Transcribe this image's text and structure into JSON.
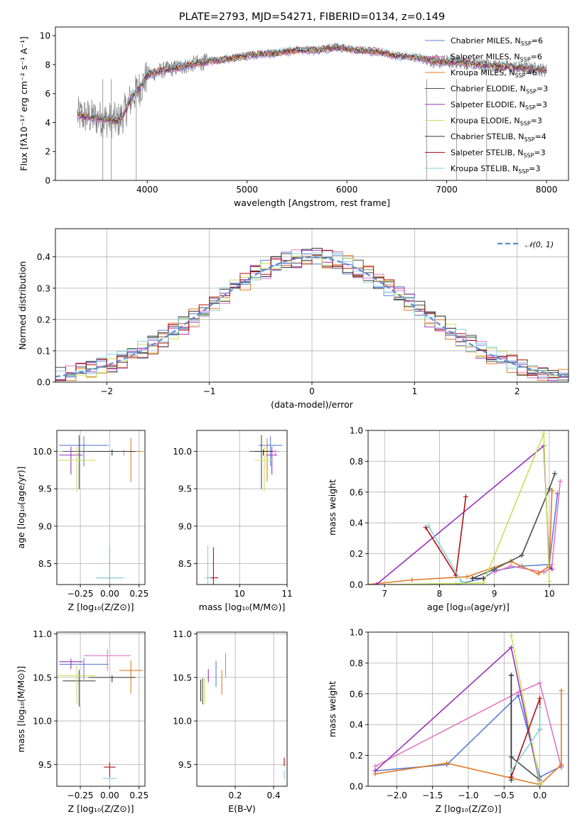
{
  "colors": {
    "Chabrier MILES": "#5b7fd6",
    "Salpeter MILES": "#e377c2",
    "Kroupa MILES": "#e07b24",
    "Chabrier ELODIE": "#4d4d4d",
    "Salpeter ELODIE": "#9b30b8",
    "Kroupa ELODIE": "#c8e05a",
    "Chabrier STELIB": "#333333",
    "Salpeter STELIB": "#b01010",
    "Kroupa STELIB": "#7fd3e0",
    "normal": "#5b8bd6"
  },
  "chart_data": [
    {
      "id": "spectrum",
      "type": "line",
      "title": "PLATE=2793, MJD=54271, FIBERID=0134, z=0.149",
      "xlabel": "wavelength [Angstrom, rest frame]",
      "ylabel": "Flux [fλ10⁻¹⁷ erg cm⁻² s⁻¹ A⁻¹]",
      "xlim": [
        3080,
        8220
      ],
      "ylim": [
        0,
        10.6
      ],
      "xticks": [
        4000,
        5000,
        6000,
        7000,
        8000
      ],
      "yticks": [
        0,
        2,
        4,
        6,
        8,
        10
      ],
      "grid": false,
      "legend_position": "right",
      "legend": [
        {
          "name": "Chabrier MILES",
          "nssp": "6"
        },
        {
          "name": "Salpeter MILES",
          "nssp": "6"
        },
        {
          "name": "Kroupa MILES",
          "nssp": "6"
        },
        {
          "name": "Chabrier ELODIE",
          "nssp": "3"
        },
        {
          "name": "Salpeter ELODIE",
          "nssp": "3"
        },
        {
          "name": "Kroupa ELODIE",
          "nssp": "3"
        },
        {
          "name": "Chabrier STELIB",
          "nssp": "4"
        },
        {
          "name": "Salpeter STELIB",
          "nssp": "3"
        },
        {
          "name": "Kroupa STELIB",
          "nssp": "3"
        }
      ],
      "model_curve": {
        "x": [
          3300,
          3500,
          3700,
          3750,
          3850,
          3950,
          4000,
          4150,
          4300,
          4500,
          4700,
          4900,
          5100,
          5300,
          5500,
          5700,
          5900,
          6100,
          6300,
          6500,
          6700,
          6900,
          7100,
          7300,
          7500,
          7700,
          7900,
          8000
        ],
        "y": [
          4.5,
          4.3,
          4.1,
          4.4,
          5.8,
          6.6,
          7.3,
          7.6,
          7.8,
          8.1,
          8.3,
          8.5,
          8.7,
          8.8,
          9.0,
          9.0,
          9.2,
          9.0,
          8.9,
          8.6,
          8.5,
          8.2,
          8.2,
          8.0,
          7.9,
          7.8,
          7.7,
          7.6
        ]
      }
    },
    {
      "id": "residuals",
      "type": "step",
      "xlabel": "(data-model)/error",
      "ylabel": "Normed distribution",
      "xlim": [
        -2.5,
        2.5
      ],
      "ylim": [
        0,
        0.49
      ],
      "xticks": [
        -2,
        -1,
        0,
        1,
        2
      ],
      "yticks": [
        0.0,
        0.1,
        0.2,
        0.3,
        0.4
      ],
      "grid": true,
      "legend_position": "top-right",
      "normal_label": "𝒩(0, 1)",
      "normal": {
        "mu": 0,
        "sigma": 1
      }
    },
    {
      "id": "age-vs-Z",
      "type": "scatter",
      "xlabel": "Z [log₁₀(Z/Z⊙)]",
      "ylabel": "age  [log₁₀(age/yr)]",
      "xlim": [
        -0.45,
        0.3
      ],
      "ylim": [
        8.22,
        10.28
      ],
      "xticks": [
        -0.25,
        0.0,
        0.25
      ],
      "xticklabels": [
        "−0.25",
        "0.00",
        "0.25"
      ],
      "yticks": [
        8.5,
        9.0,
        9.5,
        10.0
      ],
      "points": [
        {
          "s": "Chabrier MILES",
          "x": -0.22,
          "y": 10.08,
          "xe": 0.21,
          "ye": 0.4
        },
        {
          "s": "Salpeter MILES",
          "x": 0.12,
          "y": 10.0,
          "xe": 0.1,
          "ye": 0.08
        },
        {
          "s": "Kroupa MILES",
          "x": 0.18,
          "y": 10.0,
          "xe": 0.1,
          "ye": 0.58
        },
        {
          "s": "Chabrier ELODIE",
          "x": -0.26,
          "y": 10.0,
          "xe": 0.14,
          "ye": 0.72
        },
        {
          "s": "Salpeter ELODIE",
          "x": -0.33,
          "y": 9.95,
          "xe": 0.1,
          "ye": 0.37
        },
        {
          "s": "Kroupa ELODIE",
          "x": -0.28,
          "y": 9.88,
          "xe": 0.16,
          "ye": 0.6
        },
        {
          "s": "Chabrier STELIB",
          "x": 0.02,
          "y": 10.0,
          "xe": 0.2,
          "ye": 0.08
        },
        {
          "s": "Salpeter STELIB",
          "x": 0.0,
          "y": 8.31,
          "xe": 0.1,
          "ye": 1.36
        },
        {
          "s": "Kroupa STELIB",
          "x": 0.0,
          "y": 8.31,
          "xe": 0.12,
          "ye": 1.44
        }
      ]
    },
    {
      "id": "age-vs-mass",
      "type": "scatter",
      "xlabel": "mass [log₁₀(M/M⊙)]",
      "xlim": [
        9.1,
        11.0
      ],
      "ylim": [
        8.22,
        10.28
      ],
      "xticks": [
        10,
        11
      ],
      "yticks": [
        8.5,
        9.0,
        9.5,
        10.0
      ],
      "points": [
        {
          "s": "Chabrier MILES",
          "x": 10.65,
          "y": 10.08,
          "xe": 0.25,
          "ye": 0.4
        },
        {
          "s": "Salpeter MILES",
          "x": 10.75,
          "y": 10.0,
          "xe": 0.1,
          "ye": 0.08
        },
        {
          "s": "Kroupa MILES",
          "x": 10.58,
          "y": 10.0,
          "xe": 0.1,
          "ye": 0.58
        },
        {
          "s": "Chabrier ELODIE",
          "x": 10.46,
          "y": 10.0,
          "xe": 0.25,
          "ye": 0.72
        },
        {
          "s": "Salpeter ELODIE",
          "x": 10.68,
          "y": 9.95,
          "xe": 0.12,
          "ye": 0.37
        },
        {
          "s": "Kroupa ELODIE",
          "x": 10.52,
          "y": 9.88,
          "xe": 0.2,
          "ye": 0.6
        },
        {
          "s": "Chabrier STELIB",
          "x": 10.5,
          "y": 10.0,
          "xe": 0.2,
          "ye": 0.08
        },
        {
          "s": "Salpeter STELIB",
          "x": 9.45,
          "y": 8.31,
          "xe": 0.1,
          "ye": 1.36
        },
        {
          "s": "Kroupa STELIB",
          "x": 9.33,
          "y": 8.31,
          "xe": 0.06,
          "ye": 1.44
        }
      ]
    },
    {
      "id": "weight-vs-age",
      "type": "line",
      "xlabel": "age  [log₁₀(age/yr)]",
      "ylabel": "mass weight",
      "xlim": [
        6.7,
        10.35
      ],
      "ylim": [
        0,
        1.0
      ],
      "xticks": [
        7,
        8,
        9,
        10
      ],
      "yticks": [
        0.0,
        0.2,
        0.4,
        0.6,
        0.8,
        1.0
      ],
      "grid": true,
      "series": [
        {
          "s": "Chabrier MILES",
          "x": [
            8.3,
            8.8,
            9.0,
            9.5,
            10.0,
            10.15
          ],
          "y": [
            0.0,
            0.04,
            0.09,
            0.12,
            0.13,
            0.59
          ]
        },
        {
          "s": "Salpeter MILES",
          "x": [
            9.0,
            9.3,
            9.9,
            10.0,
            10.05,
            10.2
          ],
          "y": [
            0.08,
            0.12,
            0.08,
            0.1,
            0.13,
            0.67
          ]
        },
        {
          "s": "Kroupa MILES",
          "x": [
            6.7,
            7.5,
            8.5,
            9.3,
            9.8,
            10.0,
            10.05
          ],
          "y": [
            0.0,
            0.03,
            0.05,
            0.15,
            0.07,
            0.12,
            0.61
          ]
        },
        {
          "s": "Chabrier ELODIE",
          "x": [
            8.6,
            9.0,
            9.5,
            10.0,
            10.1
          ],
          "y": [
            0.04,
            0.1,
            0.19,
            0.62,
            0.72
          ]
        },
        {
          "s": "Salpeter ELODIE",
          "x": [
            6.85,
            9.9,
            10.0,
            10.05
          ],
          "y": [
            0.0,
            0.9,
            0.11,
            0.1
          ]
        },
        {
          "s": "Kroupa ELODIE",
          "x": [
            7.1,
            8.8,
            9.9,
            10.0
          ],
          "y": [
            0.0,
            0.01,
            0.98,
            0.02
          ]
        },
        {
          "s": "Chabrier STELIB",
          "x": [
            8.6,
            8.8
          ],
          "y": [
            0.04,
            0.04
          ]
        },
        {
          "s": "Salpeter STELIB",
          "x": [
            7.75,
            8.3,
            8.48
          ],
          "y": [
            0.37,
            0.06,
            0.57
          ]
        },
        {
          "s": "Kroupa STELIB",
          "x": [
            7.8,
            8.4
          ],
          "y": [
            0.38,
            0.02
          ]
        }
      ]
    },
    {
      "id": "mass-vs-Z",
      "type": "scatter",
      "xlabel": "Z [log₁₀(Z/Z⊙)]",
      "ylabel": "mass [log₁₀(M/M⊙)]",
      "xlim": [
        -0.45,
        0.3
      ],
      "ylim": [
        9.25,
        11.02
      ],
      "xticks": [
        -0.25,
        0.0,
        0.25
      ],
      "xticklabels": [
        "−0.25",
        "0.00",
        "0.25"
      ],
      "yticks": [
        9.5,
        10.0,
        10.5,
        11.0
      ],
      "points": [
        {
          "s": "Chabrier MILES",
          "x": -0.22,
          "y": 10.65,
          "xe": 0.21,
          "ye": 0.25
        },
        {
          "s": "Salpeter MILES",
          "x": -0.02,
          "y": 10.75,
          "xe": 0.2,
          "ye": 0.25
        },
        {
          "s": "Kroupa MILES",
          "x": 0.18,
          "y": 10.58,
          "xe": 0.1,
          "ye": 0.38
        },
        {
          "s": "Chabrier ELODIE",
          "x": -0.26,
          "y": 10.46,
          "xe": 0.14,
          "ye": 0.42
        },
        {
          "s": "Salpeter ELODIE",
          "x": -0.33,
          "y": 10.68,
          "xe": 0.1,
          "ye": 0.12
        },
        {
          "s": "Kroupa ELODIE",
          "x": -0.28,
          "y": 10.52,
          "xe": 0.16,
          "ye": 0.45
        },
        {
          "s": "Chabrier STELIB",
          "x": 0.02,
          "y": 10.5,
          "xe": 0.2,
          "ye": 0.08
        },
        {
          "s": "Salpeter STELIB",
          "x": 0.0,
          "y": 9.47,
          "xe": 0.05,
          "ye": 0.18
        },
        {
          "s": "Kroupa STELIB",
          "x": 0.0,
          "y": 9.34,
          "xe": 0.06,
          "ye": 0.05
        }
      ]
    },
    {
      "id": "mass-vs-ebv",
      "type": "scatter",
      "xlabel": "E(B-V)",
      "xlim": [
        0.0,
        0.47
      ],
      "ylim": [
        9.25,
        11.02
      ],
      "xticks": [
        0.2,
        0.4
      ],
      "yticks": [
        9.5,
        10.0,
        10.5,
        11.0
      ],
      "points": [
        {
          "s": "Chabrier MILES",
          "x": 0.1,
          "y": 10.6,
          "ye": 0.3
        },
        {
          "s": "Salpeter MILES",
          "x": 0.15,
          "y": 10.7,
          "ye": 0.28
        },
        {
          "s": "Kroupa MILES",
          "x": 0.13,
          "y": 10.5,
          "ye": 0.28
        },
        {
          "s": "Chabrier ELODIE",
          "x": 0.03,
          "y": 10.4,
          "ye": 0.3
        },
        {
          "s": "Salpeter ELODIE",
          "x": 0.06,
          "y": 10.55,
          "ye": 0.15
        },
        {
          "s": "Kroupa ELODIE",
          "x": 0.04,
          "y": 10.4,
          "ye": 0.3
        },
        {
          "s": "Chabrier STELIB",
          "x": 0.02,
          "y": 10.4,
          "ye": 0.25
        },
        {
          "s": "Salpeter STELIB",
          "x": 0.455,
          "y": 9.55,
          "ye": 0.1
        },
        {
          "s": "Kroupa STELIB",
          "x": 0.455,
          "y": 9.4,
          "ye": 0.1
        }
      ]
    },
    {
      "id": "weight-vs-Z",
      "type": "line",
      "xlabel": "Z [log₁₀(Z/Z⊙)]",
      "ylabel": "mass weight",
      "xlim": [
        -2.4,
        0.4
      ],
      "ylim": [
        0,
        1.0
      ],
      "xticks": [
        -2.0,
        -1.5,
        -1.0,
        -0.5,
        0.0
      ],
      "xticklabels": [
        "−2.0",
        "−1.5",
        "−1.0",
        "−0.5",
        "0.0"
      ],
      "yticks": [
        0.0,
        0.2,
        0.4,
        0.6,
        0.8,
        1.0
      ],
      "grid": true,
      "series": [
        {
          "s": "Chabrier MILES",
          "x": [
            -2.3,
            -1.3,
            -0.3,
            0.0,
            0.3
          ],
          "y": [
            0.1,
            0.14,
            0.59,
            0.06,
            0.13
          ]
        },
        {
          "s": "Salpeter MILES",
          "x": [
            -2.3,
            -0.3,
            0.0,
            0.3
          ],
          "y": [
            0.13,
            0.61,
            0.67,
            0.12
          ]
        },
        {
          "s": "Kroupa MILES",
          "x": [
            -2.3,
            -1.3,
            0.0,
            0.3,
            0.3
          ],
          "y": [
            0.08,
            0.15,
            0.01,
            0.14,
            0.62
          ]
        },
        {
          "s": "Chabrier ELODIE",
          "x": [
            -0.4,
            -0.4,
            0.0
          ],
          "y": [
            0.72,
            0.19,
            0.04
          ]
        },
        {
          "s": "Salpeter ELODIE",
          "x": [
            -2.3,
            -0.4,
            0.0
          ],
          "y": [
            0.1,
            0.9,
            0.01
          ]
        },
        {
          "s": "Kroupa ELODIE",
          "x": [
            -0.4,
            0.0,
            0.0
          ],
          "y": [
            0.98,
            0.02,
            0.01
          ]
        },
        {
          "s": "Chabrier STELIB",
          "x": [
            -0.4,
            -0.4
          ],
          "y": [
            0.72,
            0.04
          ]
        },
        {
          "s": "Salpeter STELIB",
          "x": [
            -0.4,
            0.0,
            0.0
          ],
          "y": [
            0.06,
            0.57,
            0.37
          ]
        },
        {
          "s": "Kroupa STELIB",
          "x": [
            -0.4,
            0.0,
            0.0
          ],
          "y": [
            0.1,
            0.37,
            0.51
          ]
        }
      ]
    }
  ]
}
